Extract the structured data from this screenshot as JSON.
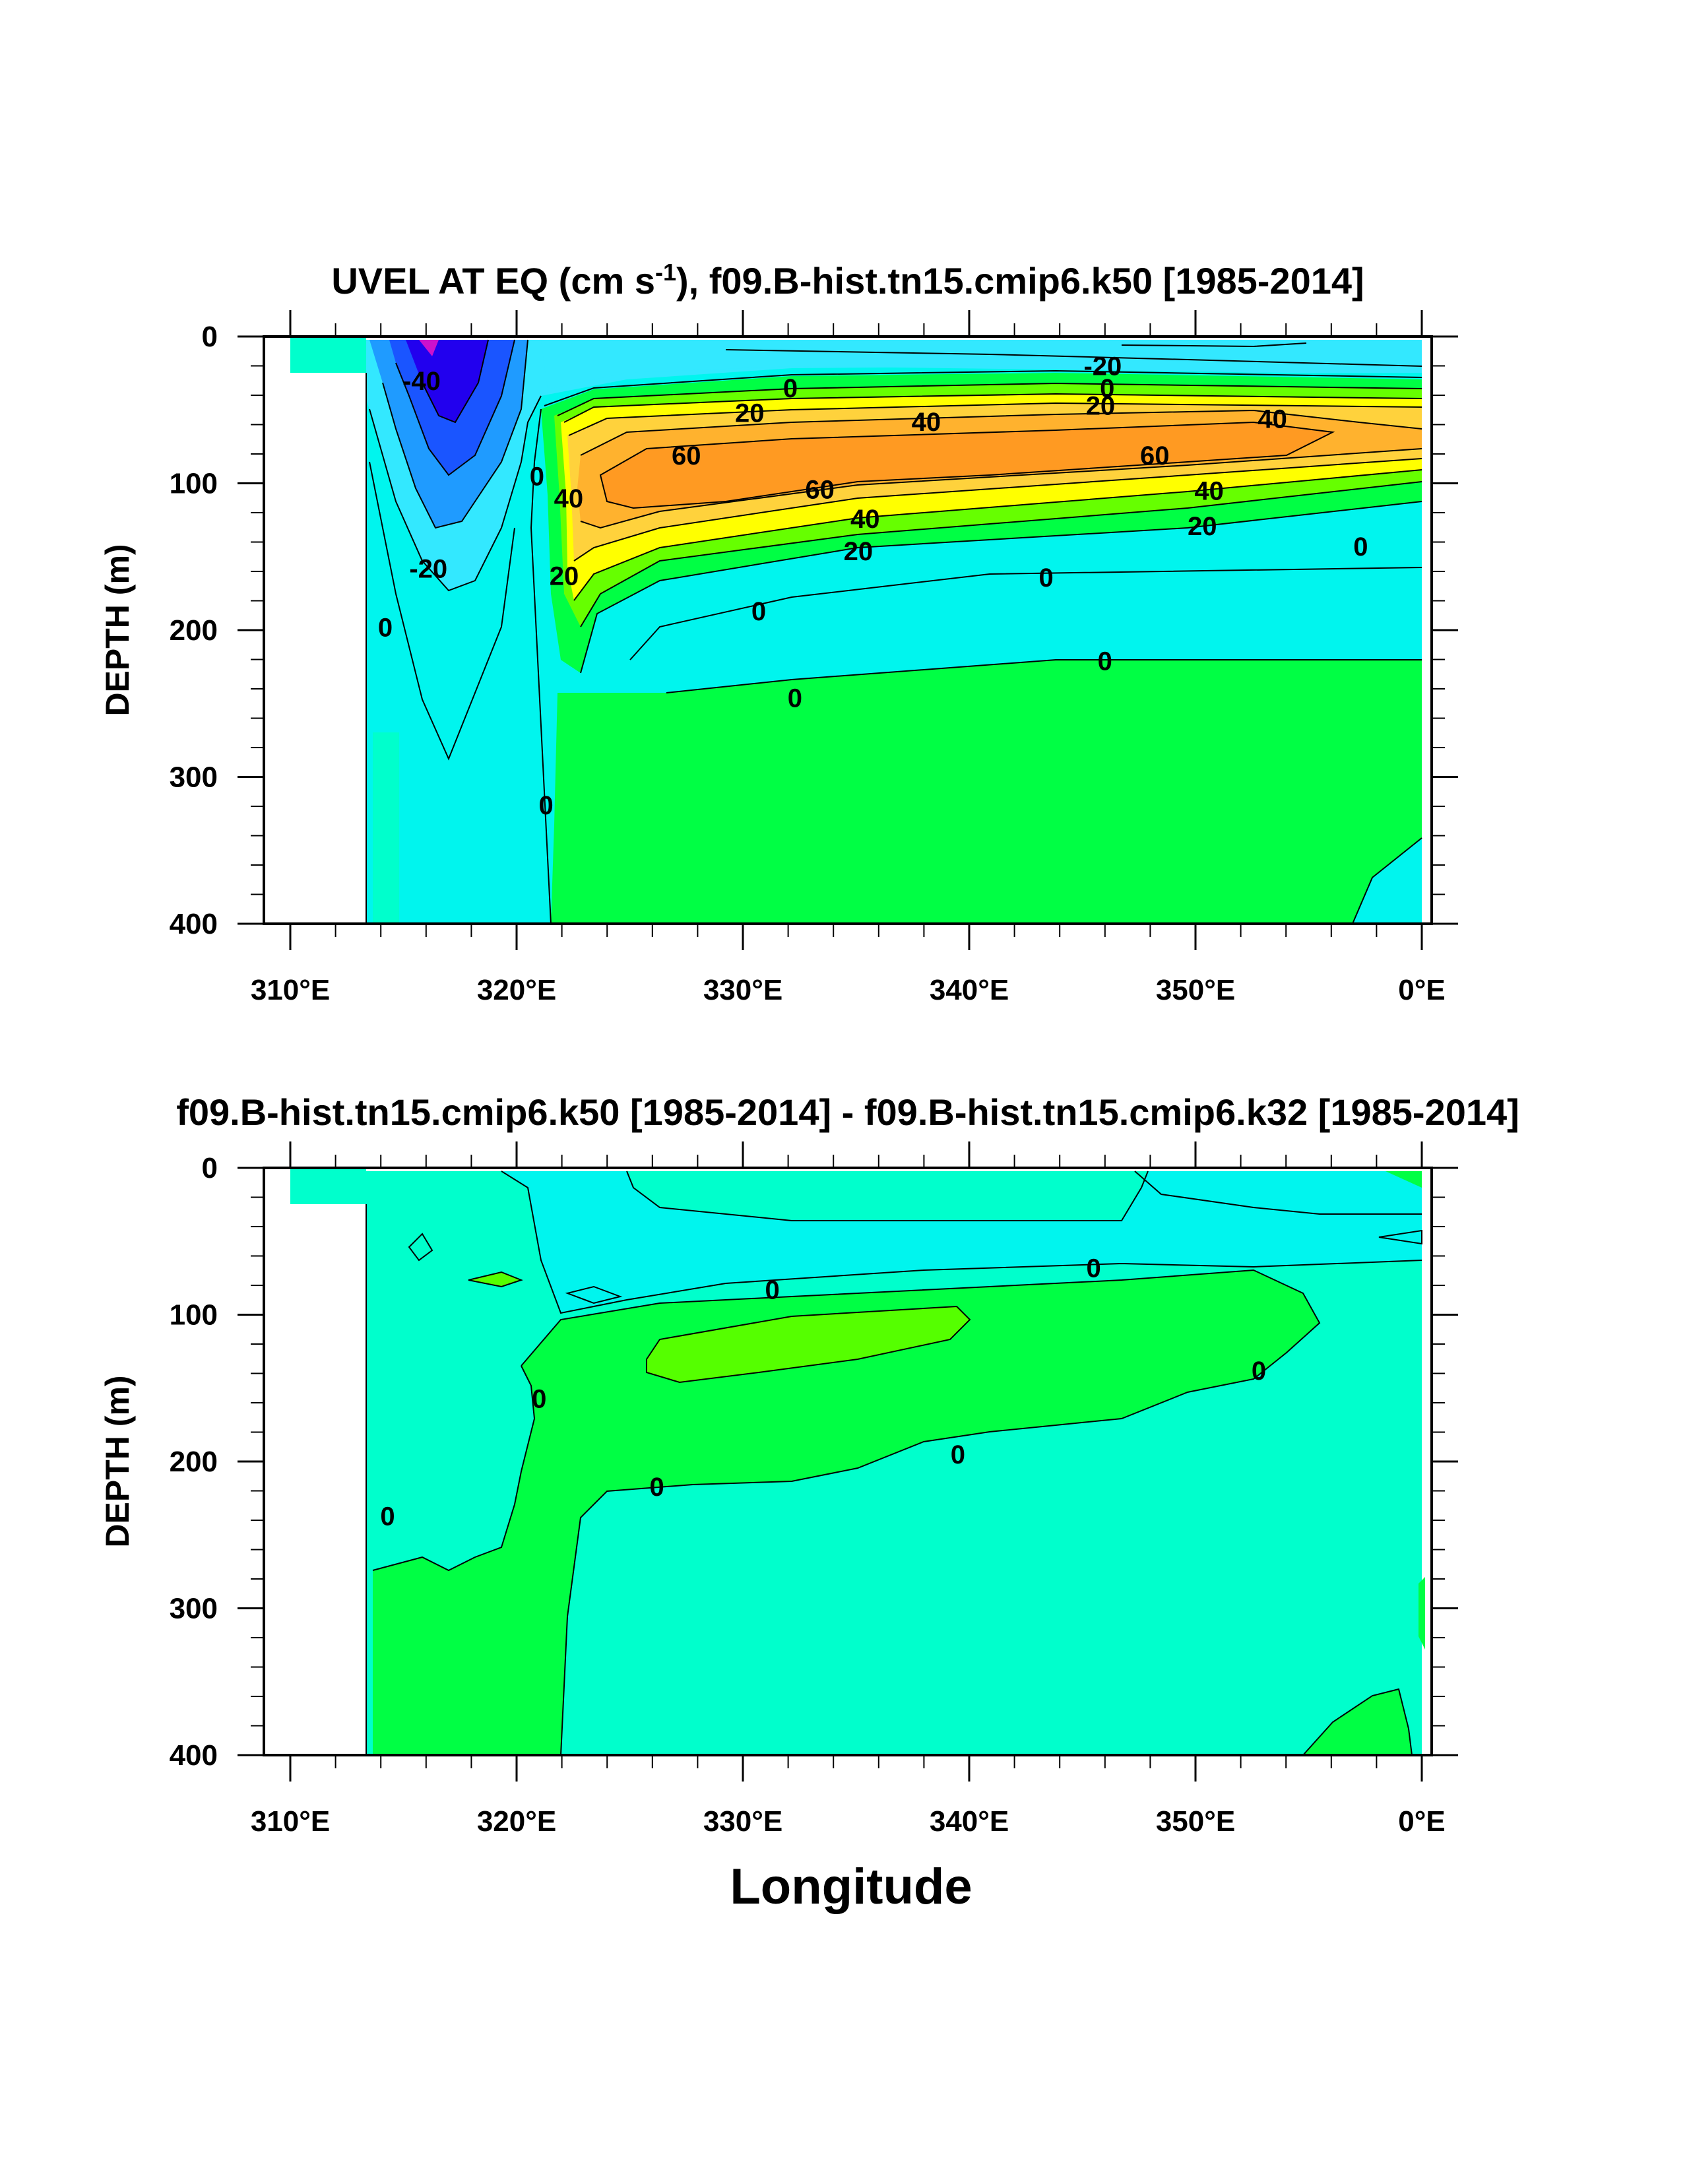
{
  "colors": {
    "background": "#ffffff",
    "contour_line": "#000000",
    "fill_scale": [
      {
        "level": "< -40",
        "color": "#2200ee"
      },
      {
        "level": "-40 to -30",
        "color": "#1a55ff"
      },
      {
        "level": "-30 to -20",
        "color": "#1f9bff"
      },
      {
        "level": "-20 to -10",
        "color": "#33e8ff"
      },
      {
        "level": "-10 to 0",
        "color": "#00f5ee"
      },
      {
        "level": "-5 to 0 (diff)",
        "color": "#00ffcc"
      },
      {
        "level": "0 to 10",
        "color": "#00ff44"
      },
      {
        "level": "10 to 20",
        "color": "#66ff00"
      },
      {
        "level": "20 to 30",
        "color": "#ffff00"
      },
      {
        "level": "30 to 40",
        "color": "#ffd23c"
      },
      {
        "level": "40 to 50",
        "color": "#ffb22e"
      },
      {
        "level": "50 to 70",
        "color": "#ff9a22"
      },
      {
        "level": "< -50",
        "color": "#cc11cc"
      }
    ]
  },
  "chart_data": [
    {
      "type": "heatmap",
      "subtype": "filled-contour",
      "title": "UVEL AT EQ (cm s",
      "title_superscript": "-1",
      "title_suffix": "), f09.B-hist.tn15.cmip6.k50 [1985-2014]",
      "xlabel": "",
      "ylabel": "DEPTH (m)",
      "xlim": [
        310,
        360
      ],
      "ylim": [
        0,
        400
      ],
      "y_inverted": true,
      "x_ticks": [
        "310°E",
        "320°E",
        "330°E",
        "340°E",
        "350°E",
        "0°E"
      ],
      "y_ticks": [
        "0",
        "100",
        "200",
        "300",
        "400"
      ],
      "contour_interval": 10,
      "contour_labels": [
        {
          "text": "-40",
          "lon": 315.8,
          "depth": 30
        },
        {
          "text": "-20",
          "lon": 345.9,
          "depth": 20
        },
        {
          "text": "0",
          "lon": 346.1,
          "depth": 35
        },
        {
          "text": "0",
          "lon": 332.1,
          "depth": 35
        },
        {
          "text": "20",
          "lon": 330.3,
          "depth": 52
        },
        {
          "text": "20",
          "lon": 345.8,
          "depth": 47
        },
        {
          "text": "40",
          "lon": 338.1,
          "depth": 58
        },
        {
          "text": "40",
          "lon": 353.4,
          "depth": 56
        },
        {
          "text": "60",
          "lon": 327.5,
          "depth": 81
        },
        {
          "text": "60",
          "lon": 348.2,
          "depth": 81
        },
        {
          "text": "60",
          "lon": 333.4,
          "depth": 104
        },
        {
          "text": "40",
          "lon": 335.4,
          "depth": 124
        },
        {
          "text": "40",
          "lon": 350.6,
          "depth": 105
        },
        {
          "text": "20",
          "lon": 350.3,
          "depth": 129
        },
        {
          "text": "20",
          "lon": 335.1,
          "depth": 146
        },
        {
          "text": "40",
          "lon": 322.3,
          "depth": 110
        },
        {
          "text": "0",
          "lon": 320.9,
          "depth": 95
        },
        {
          "text": "20",
          "lon": 322.1,
          "depth": 163
        },
        {
          "text": "-20",
          "lon": 316.1,
          "depth": 158
        },
        {
          "text": "0",
          "lon": 314.2,
          "depth": 198
        },
        {
          "text": "0",
          "lon": 330.7,
          "depth": 187
        },
        {
          "text": "0",
          "lon": 343.4,
          "depth": 164
        },
        {
          "text": "0",
          "lon": 357.3,
          "depth": 143
        },
        {
          "text": "0",
          "lon": 346.0,
          "depth": 221
        },
        {
          "text": "0",
          "lon": 332.3,
          "depth": 246
        },
        {
          "text": "0",
          "lon": 321.3,
          "depth": 319
        }
      ],
      "features": [
        {
          "description": "westward surface current core",
          "min_value": -50,
          "lon": 316.5,
          "depth": 5
        },
        {
          "description": "equatorial undercurrent core",
          "max_value": 65,
          "lon": 335,
          "depth": 90
        },
        {
          "description": "land mask (no data)",
          "lon_range": [
            310,
            314.4
          ],
          "depth_range": [
            25,
            400
          ]
        }
      ]
    },
    {
      "type": "heatmap",
      "subtype": "filled-contour",
      "title": "f09.B-hist.tn15.cmip6.k50 [1985-2014] - f09.B-hist.tn15.cmip6.k32 [1985-2014]",
      "xlabel": "Longitude",
      "ylabel": "DEPTH (m)",
      "xlim": [
        310,
        360
      ],
      "ylim": [
        0,
        400
      ],
      "y_inverted": true,
      "x_ticks": [
        "310°E",
        "320°E",
        "330°E",
        "340°E",
        "350°E",
        "0°E"
      ],
      "y_ticks": [
        "0",
        "100",
        "200",
        "300",
        "400"
      ],
      "contour_labels": [
        {
          "text": "0",
          "lon": 331.3,
          "depth": 83
        },
        {
          "text": "0",
          "lon": 345.5,
          "depth": 68
        },
        {
          "text": "0",
          "lon": 321.0,
          "depth": 157
        },
        {
          "text": "0",
          "lon": 352.8,
          "depth": 138
        },
        {
          "text": "0",
          "lon": 339.5,
          "depth": 195
        },
        {
          "text": "0",
          "lon": 326.2,
          "depth": 217
        },
        {
          "text": "0",
          "lon": 314.3,
          "depth": 237
        }
      ],
      "features": [
        {
          "description": "positive difference band",
          "lon_range": [
            321,
            355
          ],
          "depth_range": [
            80,
            230
          ]
        },
        {
          "description": "positive difference maximum",
          "lon_range": [
            326,
            340
          ],
          "depth_range": [
            95,
            140
          ]
        },
        {
          "description": "land mask (no data)",
          "lon_range": [
            310,
            314.4
          ],
          "depth_range": [
            25,
            400
          ]
        }
      ]
    }
  ]
}
